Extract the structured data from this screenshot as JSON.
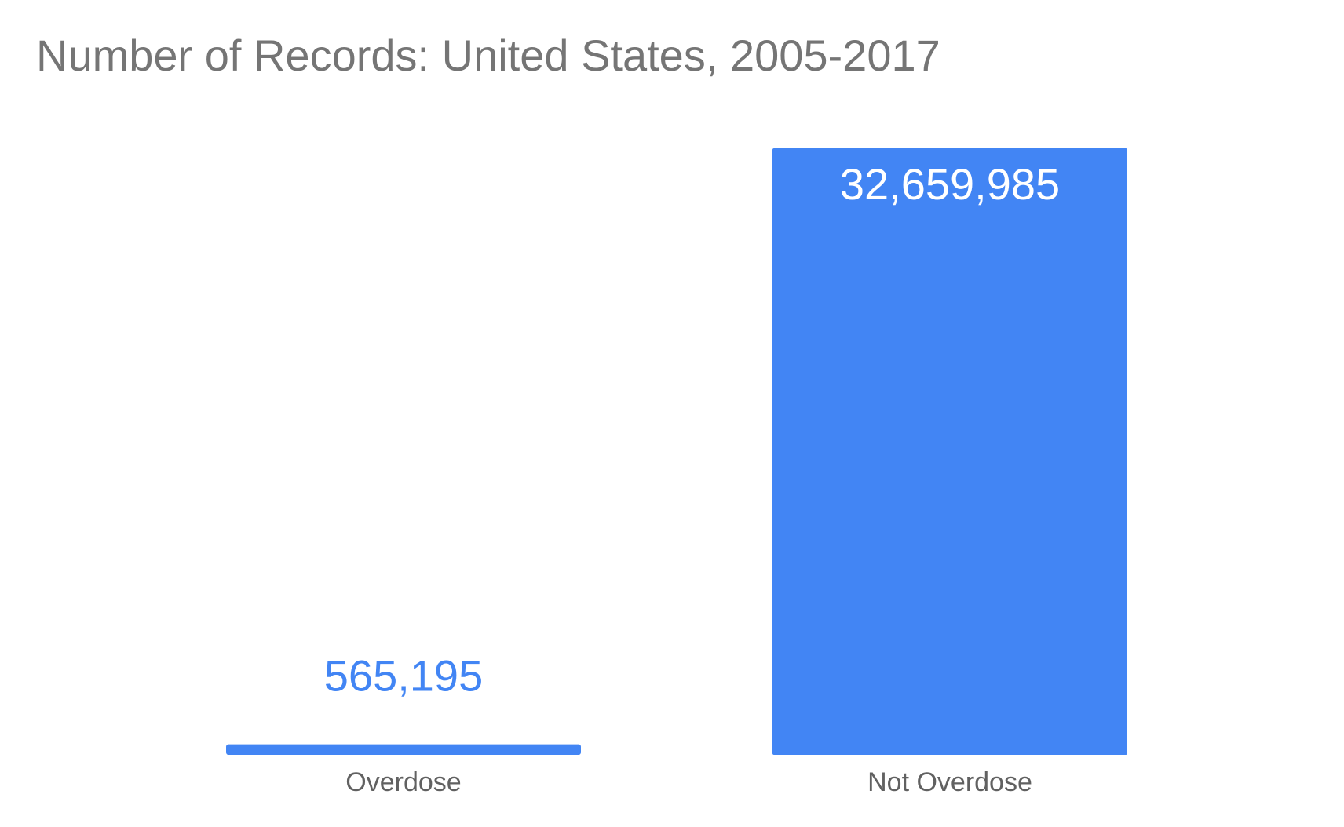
{
  "chart_data": {
    "type": "bar",
    "title": "Number of Records: United States, 2005-2017",
    "categories": [
      "Overdose",
      "Not Overdose"
    ],
    "values": [
      565195,
      32659985
    ],
    "value_labels": [
      "565,195",
      "32,659,985"
    ],
    "xlabel": "",
    "ylabel": "",
    "ylim": [
      0,
      32659985
    ],
    "grid": false,
    "legend": "none",
    "bar_color": "#4285F4",
    "value_label_inside_color": "#ffffff",
    "value_label_outside_color": "#4285F4"
  }
}
